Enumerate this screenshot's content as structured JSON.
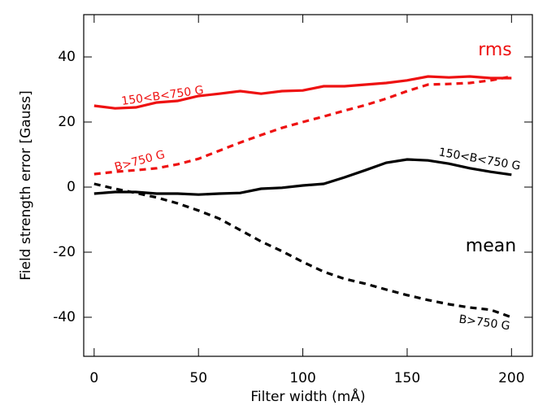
{
  "chart_data": {
    "type": "line",
    "x_label": "Filter width (mÅ)",
    "y_label": "Field strength error [Gauss]",
    "x": [
      0,
      10,
      20,
      30,
      40,
      50,
      60,
      70,
      80,
      90,
      100,
      110,
      120,
      130,
      140,
      150,
      160,
      170,
      180,
      190,
      200
    ],
    "xlim": [
      -5,
      210
    ],
    "xticks": [
      0,
      50,
      100,
      150,
      200
    ],
    "ylim": [
      -52,
      53
    ],
    "yticks": [
      -40,
      -20,
      0,
      20,
      40
    ],
    "groups": [
      {
        "name": "rms",
        "color": "#ee1111"
      },
      {
        "name": "mean",
        "color": "#000000"
      }
    ],
    "series": [
      {
        "name": "150<B<750 G",
        "group": 0,
        "color": "#ee1111",
        "dashed": false,
        "values": [
          25,
          24.2,
          24.5,
          26,
          26.5,
          28,
          28.7,
          29.5,
          28.7,
          29.5,
          29.7,
          31,
          31,
          31.5,
          32,
          32.8,
          34,
          33.7,
          34,
          33.5,
          33.5
        ]
      },
      {
        "name": "B>750 G",
        "group": 0,
        "color": "#ee1111",
        "dashed": true,
        "values": [
          4,
          4.7,
          5.2,
          5.8,
          7,
          8.7,
          11.2,
          13.7,
          16,
          18.2,
          20,
          21.7,
          23.5,
          25.2,
          27.2,
          29.5,
          31.5,
          31.7,
          32,
          32.8,
          34
        ]
      },
      {
        "name": "150<B<750 G",
        "group": 1,
        "color": "#000000",
        "dashed": false,
        "values": [
          -2,
          -1.5,
          -1.5,
          -2,
          -2,
          -2.3,
          -2,
          -1.8,
          -0.5,
          -0.2,
          0.5,
          1,
          3,
          5.2,
          7.5,
          8.5,
          8.2,
          7.2,
          5.8,
          4.7,
          3.8
        ]
      },
      {
        "name": "B>750 G",
        "group": 1,
        "color": "#000000",
        "dashed": true,
        "values": [
          1,
          -0.5,
          -1.8,
          -3.2,
          -5,
          -7.2,
          -9.7,
          -13.2,
          -16.7,
          -19.7,
          -23,
          -26,
          -28.2,
          -29.7,
          -31.5,
          -33.2,
          -34.7,
          -36,
          -37,
          -37.7,
          -40
        ]
      }
    ]
  }
}
